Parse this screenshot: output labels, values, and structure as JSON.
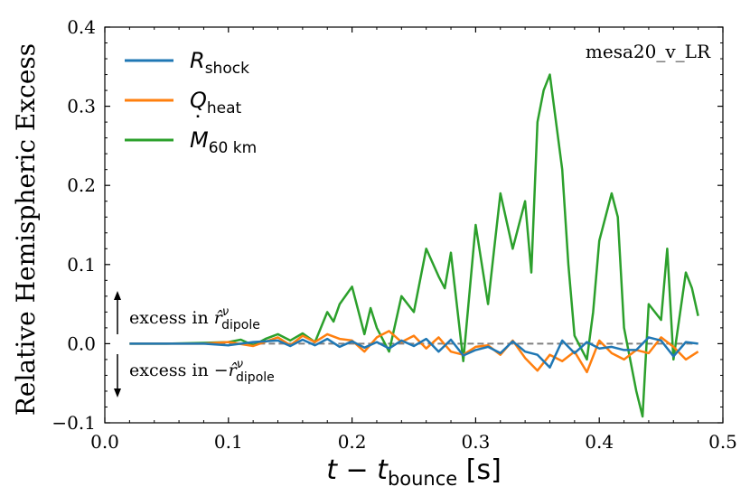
{
  "chart_data": {
    "type": "line",
    "run_label": "mesa20_v_LR",
    "xlabel_main": "t − t",
    "xlabel_sub": "bounce",
    "xlabel_unit": " [s]",
    "ylabel": "Relative Hemispheric Excess",
    "xlim": [
      0.0,
      0.5
    ],
    "ylim": [
      -0.1,
      0.4
    ],
    "xticks": [
      0.0,
      0.1,
      0.2,
      0.3,
      0.4,
      0.5
    ],
    "yticks": [
      -0.1,
      0.0,
      0.1,
      0.2,
      0.3,
      0.4
    ],
    "xtick_labels": [
      "0.0",
      "0.1",
      "0.2",
      "0.3",
      "0.4",
      "0.5"
    ],
    "ytick_labels": [
      "−0.1",
      "0.0",
      "0.1",
      "0.2",
      "0.3",
      "0.4"
    ],
    "legend_position": "top-left",
    "reference_line": {
      "y": 0.0,
      "color": "#808080",
      "style": "dashed"
    },
    "annotation_up": {
      "prefix": "excess in ",
      "symbol": "r̂",
      "sup": "ν",
      "sub": "dipole"
    },
    "annotation_down": {
      "prefix": "excess in −",
      "symbol": "r̂",
      "sup": "ν",
      "sub": "dipole"
    },
    "series": [
      {
        "name": "R_shock",
        "label_main": "R",
        "label_sub": "shock",
        "label_dot": "",
        "color": "#1f77b4",
        "x": [
          0.02,
          0.05,
          0.08,
          0.1,
          0.12,
          0.14,
          0.15,
          0.16,
          0.17,
          0.18,
          0.19,
          0.2,
          0.21,
          0.22,
          0.23,
          0.24,
          0.25,
          0.26,
          0.27,
          0.28,
          0.29,
          0.3,
          0.31,
          0.32,
          0.33,
          0.34,
          0.35,
          0.36,
          0.37,
          0.38,
          0.39,
          0.4,
          0.41,
          0.42,
          0.43,
          0.44,
          0.45,
          0.46,
          0.47,
          0.48
        ],
        "y": [
          0.0,
          0.0,
          0.0,
          -0.002,
          0.002,
          0.004,
          -0.003,
          0.005,
          -0.002,
          0.006,
          -0.004,
          0.003,
          -0.005,
          0.002,
          -0.006,
          0.004,
          -0.003,
          0.006,
          -0.01,
          0.005,
          -0.015,
          -0.008,
          -0.004,
          -0.012,
          0.003,
          -0.01,
          -0.014,
          -0.03,
          0.004,
          -0.012,
          0.002,
          -0.006,
          -0.004,
          -0.008,
          -0.008,
          0.008,
          0.004,
          -0.016,
          0.002,
          0.0
        ]
      },
      {
        "name": "Q_heat",
        "label_main": "Q",
        "label_sub": "heat",
        "label_dot": "",
        "color": "#ff7f0e",
        "x": [
          0.02,
          0.05,
          0.08,
          0.1,
          0.12,
          0.14,
          0.15,
          0.16,
          0.17,
          0.18,
          0.19,
          0.2,
          0.21,
          0.22,
          0.23,
          0.24,
          0.25,
          0.26,
          0.27,
          0.28,
          0.29,
          0.3,
          0.31,
          0.32,
          0.33,
          0.34,
          0.35,
          0.36,
          0.37,
          0.38,
          0.39,
          0.4,
          0.41,
          0.42,
          0.43,
          0.44,
          0.45,
          0.46,
          0.47,
          0.48
        ],
        "y": [
          0.0,
          0.0,
          0.0,
          0.002,
          -0.003,
          0.008,
          -0.002,
          0.01,
          0.002,
          0.012,
          0.006,
          0.004,
          -0.01,
          0.008,
          0.016,
          0.002,
          0.01,
          -0.006,
          0.008,
          -0.01,
          -0.014,
          -0.004,
          -0.002,
          -0.014,
          0.004,
          -0.018,
          -0.034,
          -0.014,
          -0.022,
          -0.01,
          -0.036,
          0.004,
          -0.012,
          -0.02,
          -0.008,
          -0.012,
          0.008,
          -0.004,
          -0.02,
          -0.01
        ]
      },
      {
        "name": "Mdot_60km",
        "label_main": "M",
        "label_sub": "60 km",
        "label_dot": "˙",
        "color": "#2ca02c",
        "x": [
          0.02,
          0.05,
          0.08,
          0.1,
          0.11,
          0.12,
          0.13,
          0.14,
          0.15,
          0.16,
          0.17,
          0.18,
          0.185,
          0.19,
          0.2,
          0.21,
          0.215,
          0.22,
          0.23,
          0.24,
          0.25,
          0.26,
          0.27,
          0.275,
          0.28,
          0.29,
          0.3,
          0.31,
          0.315,
          0.32,
          0.33,
          0.34,
          0.345,
          0.35,
          0.355,
          0.36,
          0.37,
          0.375,
          0.38,
          0.39,
          0.395,
          0.4,
          0.41,
          0.415,
          0.42,
          0.43,
          0.435,
          0.44,
          0.45,
          0.455,
          0.46,
          0.47,
          0.475,
          0.48
        ],
        "y": [
          0.0,
          0.0,
          0.001,
          0.002,
          0.005,
          -0.002,
          0.006,
          0.012,
          0.004,
          0.013,
          0.002,
          0.04,
          0.028,
          0.05,
          0.072,
          0.012,
          0.045,
          0.02,
          -0.01,
          0.06,
          0.04,
          0.12,
          0.085,
          0.07,
          0.115,
          -0.022,
          0.15,
          0.05,
          0.12,
          0.19,
          0.12,
          0.18,
          0.09,
          0.28,
          0.32,
          0.34,
          0.22,
          0.1,
          0.01,
          -0.02,
          0.04,
          0.13,
          0.19,
          0.16,
          0.02,
          -0.06,
          -0.092,
          0.05,
          0.03,
          0.12,
          -0.02,
          0.09,
          0.07,
          0.035
        ]
      }
    ]
  }
}
